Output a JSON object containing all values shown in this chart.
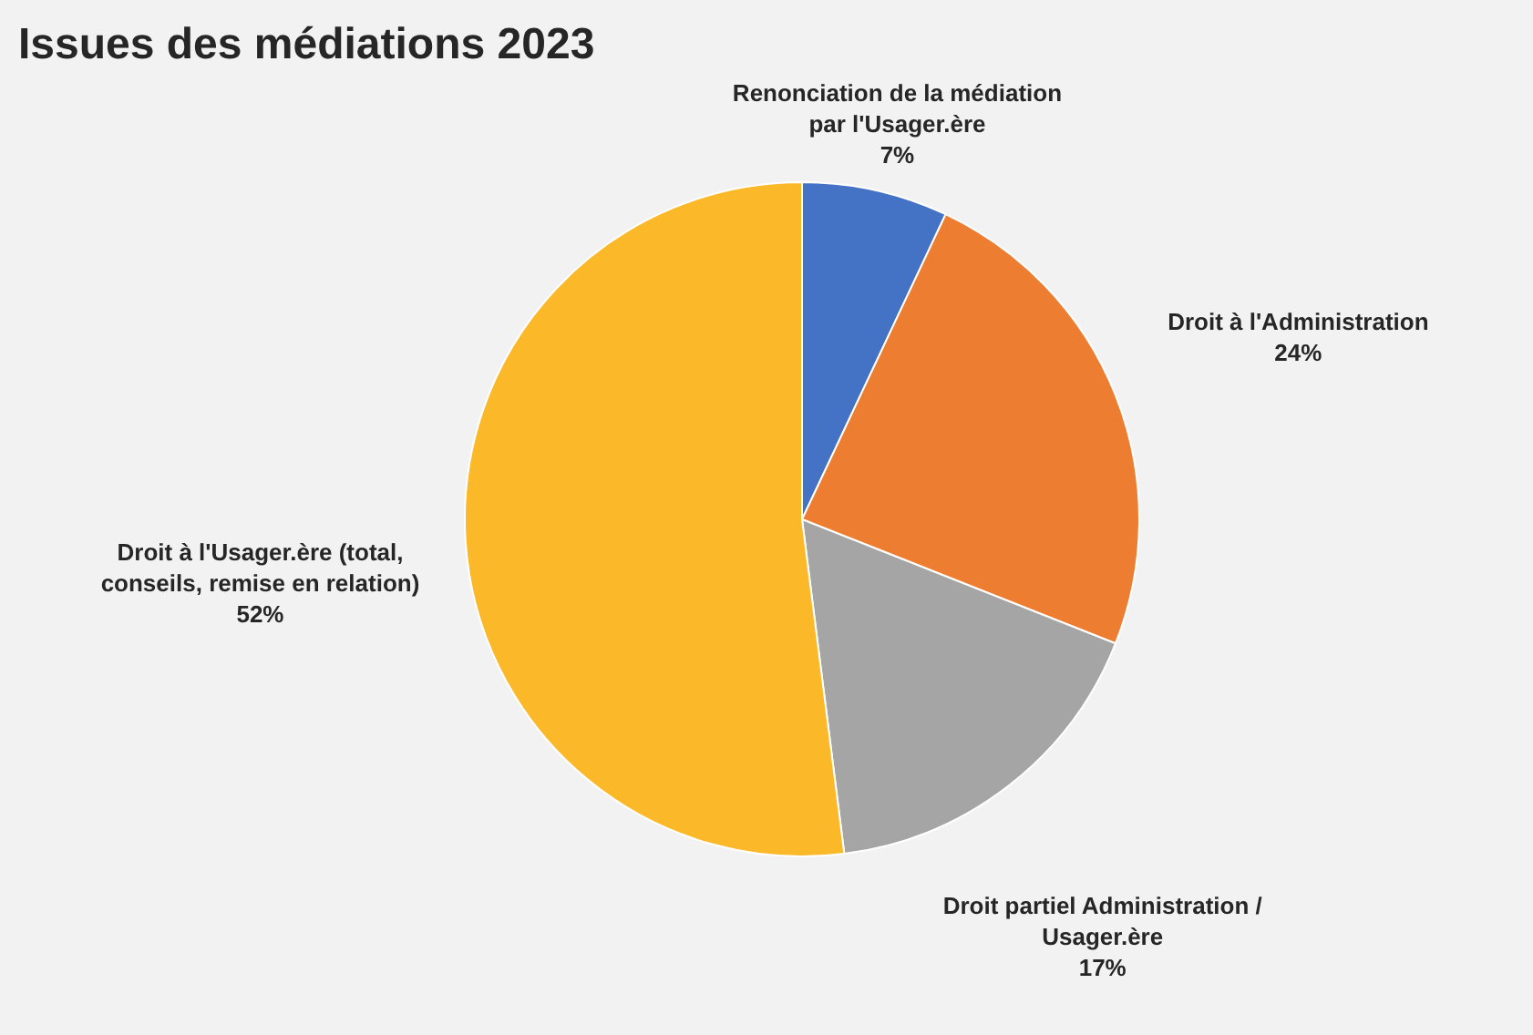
{
  "chart_data": {
    "type": "pie",
    "title": "Issues des médiations 2023",
    "categories": [
      "Renonciation de la médiation par l'Usager.ère",
      "Droit à l'Administration",
      "Droit partiel Administration / Usager.ère",
      "Droit à l'Usager.ère (total, conseils, remise en relation)"
    ],
    "values": [
      7,
      24,
      17,
      52
    ],
    "value_labels": [
      "7%",
      "24%",
      "17%",
      "52%"
    ],
    "colors": [
      "#4472c4",
      "#ed7d31",
      "#a5a5a5",
      "#fbb829"
    ]
  }
}
